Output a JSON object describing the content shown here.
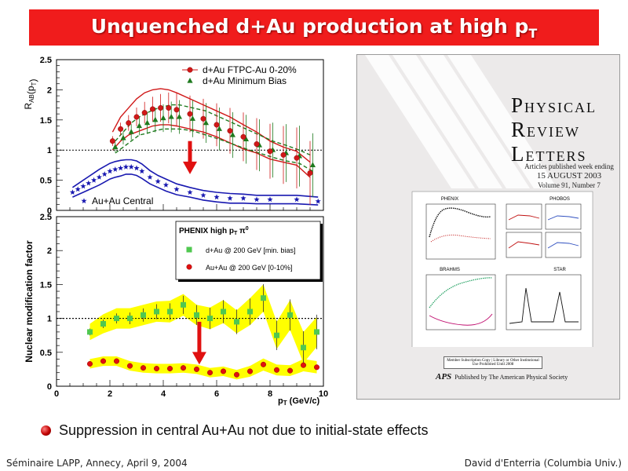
{
  "slide": {
    "title_main": "Unquenched d+Au production at high p",
    "title_sub": "T",
    "bullet": "Suppression in central Au+Au not due to initial-state effects",
    "footer_left": "Séminaire LAPP, Annecy, April 9, 2004",
    "footer_right": "David d'Enterria (Columbia Univ.)"
  },
  "journal": {
    "line1": "HYSICAL",
    "line1_cap": "P",
    "line2": "EVIEW",
    "line2_cap": "R",
    "line3": "ETTERS",
    "line3_cap": "L",
    "issue_lines": [
      "Articles published week ending",
      "15 AUGUST 2003",
      "Volume 91, Number 7"
    ],
    "panels": [
      "PHENIX",
      "PHOBOS",
      "BRAHMS",
      "STAR"
    ],
    "subscription_note": "Member Subscription Copy | Library or Other Institutional Use Prohibited Until 2008",
    "publisher_mark": "APS",
    "publisher": "Published by The American Physical Society"
  },
  "colors": {
    "title_bg": "#f01c1c",
    "star_red": "#d01818",
    "star_green": "#1e7a1e",
    "star_blue": "#1818b0",
    "phenix_band": "#ffff00",
    "phenix_green": "#50c850",
    "phenix_red": "#e01010",
    "arrow": "#e01010"
  },
  "chart_data": [
    {
      "type": "scatter",
      "ylabel_main": "R",
      "ylabel_sub": "AB",
      "ylabel_tail": "(p",
      "ylabel_tail_sub": "T",
      "ylabel_close": ")",
      "xlim": [
        0,
        10
      ],
      "ylim": [
        0,
        2.5
      ],
      "yticks": [
        "0",
        "0.5",
        "1",
        "1.5",
        "2",
        "2.5"
      ],
      "grid": false,
      "reference_line": 1,
      "legend_position": "top-right",
      "series": [
        {
          "name": "d+Au FTPC-Au 0-20%",
          "marker": "circle",
          "color": "#d01818",
          "x": [
            2.1,
            2.4,
            2.7,
            3.0,
            3.3,
            3.6,
            3.9,
            4.2,
            4.5,
            5.0,
            5.5,
            6.0,
            6.5,
            7.0,
            7.5,
            8.0,
            8.5,
            9.0,
            9.5
          ],
          "y": [
            1.15,
            1.35,
            1.45,
            1.55,
            1.62,
            1.68,
            1.7,
            1.7,
            1.67,
            1.6,
            1.52,
            1.42,
            1.32,
            1.22,
            1.1,
            0.98,
            0.92,
            0.87,
            0.62
          ],
          "band_upper": [
            1.3,
            1.55,
            1.7,
            1.85,
            1.95,
            2.0,
            2.02,
            2.0,
            1.95,
            1.85,
            1.75,
            1.65,
            1.55,
            1.42,
            1.3,
            1.15,
            1.05,
            0.98,
            0.8
          ],
          "band_lower": [
            1.0,
            1.15,
            1.25,
            1.3,
            1.35,
            1.4,
            1.42,
            1.42,
            1.4,
            1.35,
            1.3,
            1.22,
            1.12,
            1.02,
            0.95,
            0.85,
            0.8,
            0.75,
            0.55
          ]
        },
        {
          "name": "d+Au Minimum Bias",
          "marker": "triangle",
          "color": "#1e7a1e",
          "x": [
            2.2,
            2.5,
            2.8,
            3.1,
            3.4,
            3.7,
            4.0,
            4.3,
            4.6,
            5.1,
            5.6,
            6.1,
            6.6,
            7.1,
            7.6,
            8.1,
            8.6,
            9.1,
            9.6
          ],
          "y": [
            1.05,
            1.2,
            1.3,
            1.4,
            1.45,
            1.5,
            1.53,
            1.55,
            1.55,
            1.52,
            1.45,
            1.35,
            1.25,
            1.18,
            1.08,
            1.0,
            0.95,
            0.9,
            0.75
          ],
          "band_upper": [
            1.15,
            1.3,
            1.45,
            1.55,
            1.62,
            1.68,
            1.72,
            1.75,
            1.75,
            1.7,
            1.65,
            1.55,
            1.45,
            1.35,
            1.25,
            1.15,
            1.08,
            1.0,
            0.9
          ],
          "band_lower": [
            0.95,
            1.05,
            1.15,
            1.25,
            1.28,
            1.32,
            1.35,
            1.35,
            1.35,
            1.32,
            1.25,
            1.18,
            1.1,
            1.02,
            0.95,
            0.88,
            0.82,
            0.78,
            0.65
          ]
        },
        {
          "name": "Au+Au Central",
          "marker": "star",
          "color": "#1818b0",
          "x": [
            0.6,
            0.8,
            1.0,
            1.2,
            1.4,
            1.6,
            1.8,
            2.0,
            2.2,
            2.4,
            2.6,
            2.8,
            3.0,
            3.2,
            3.5,
            3.8,
            4.1,
            4.5,
            5.0,
            5.5,
            6.0,
            6.5,
            7.0,
            7.5,
            8.0,
            9.0,
            9.8
          ],
          "y": [
            0.3,
            0.35,
            0.4,
            0.45,
            0.5,
            0.55,
            0.6,
            0.65,
            0.68,
            0.7,
            0.72,
            0.72,
            0.7,
            0.65,
            0.55,
            0.48,
            0.42,
            0.35,
            0.3,
            0.25,
            0.22,
            0.2,
            0.2,
            0.18,
            0.18,
            0.18,
            0.15
          ],
          "band_upper": [
            0.38,
            0.44,
            0.5,
            0.56,
            0.62,
            0.68,
            0.73,
            0.78,
            0.81,
            0.83,
            0.84,
            0.84,
            0.82,
            0.77,
            0.66,
            0.58,
            0.52,
            0.44,
            0.38,
            0.33,
            0.3,
            0.28,
            0.27,
            0.25,
            0.25,
            0.25,
            0.22
          ],
          "band_lower": [
            0.22,
            0.26,
            0.3,
            0.34,
            0.38,
            0.42,
            0.47,
            0.52,
            0.55,
            0.57,
            0.6,
            0.6,
            0.58,
            0.53,
            0.44,
            0.38,
            0.32,
            0.26,
            0.22,
            0.17,
            0.14,
            0.12,
            0.12,
            0.11,
            0.11,
            0.11,
            0.09
          ]
        }
      ],
      "arrow_x": 5.0,
      "arrow_from_y": 1.15,
      "arrow_to_y": 0.6
    },
    {
      "type": "scatter",
      "ylabel": "Nuclear modification factor",
      "xlabel_main": "p",
      "xlabel_sub": "T",
      "xlabel_tail": " (GeV/c)",
      "xlim": [
        0,
        10
      ],
      "ylim": [
        0,
        2.5
      ],
      "xticks": [
        "0",
        "2",
        "4",
        "6",
        "8",
        "10"
      ],
      "yticks": [
        "0",
        "0.5",
        "1",
        "1.5",
        "2",
        "2.5"
      ],
      "grid": false,
      "reference_line": 1,
      "legend_title_main": "PHENIX high p",
      "legend_title_sub": "T",
      "legend_title_tail": " π",
      "legend_title_sup": "0",
      "legend_position": "top-right",
      "series": [
        {
          "name": "d+Au @ 200 GeV [min. bias]",
          "marker": "square",
          "color": "#50c850",
          "x": [
            1.25,
            1.75,
            2.25,
            2.75,
            3.25,
            3.75,
            4.25,
            4.75,
            5.25,
            5.75,
            6.25,
            6.75,
            7.25,
            7.75,
            8.25,
            8.75,
            9.25,
            9.75
          ],
          "y": [
            0.8,
            0.92,
            1.0,
            1.0,
            1.05,
            1.1,
            1.1,
            1.2,
            1.05,
            1.0,
            1.1,
            0.95,
            1.1,
            1.3,
            0.75,
            1.05,
            0.57,
            0.8
          ],
          "band_upper": [
            0.92,
            1.06,
            1.15,
            1.15,
            1.2,
            1.25,
            1.26,
            1.36,
            1.2,
            1.16,
            1.27,
            1.12,
            1.3,
            1.5,
            0.95,
            1.27,
            0.8,
            1.02
          ],
          "band_lower": [
            0.68,
            0.78,
            0.85,
            0.85,
            0.9,
            0.95,
            0.94,
            1.04,
            0.9,
            0.84,
            0.93,
            0.78,
            0.9,
            1.1,
            0.55,
            0.83,
            0.34,
            0.58
          ]
        },
        {
          "name": "Au+Au @ 200 GeV [0-10%]",
          "marker": "circle",
          "color": "#e01010",
          "x": [
            1.25,
            1.75,
            2.25,
            2.75,
            3.25,
            3.75,
            4.25,
            4.75,
            5.25,
            5.75,
            6.25,
            6.75,
            7.25,
            7.75,
            8.25,
            8.75,
            9.25,
            9.75
          ],
          "y": [
            0.33,
            0.37,
            0.37,
            0.3,
            0.27,
            0.26,
            0.26,
            0.27,
            0.25,
            0.2,
            0.22,
            0.17,
            0.22,
            0.32,
            0.24,
            0.23,
            0.31,
            0.28
          ],
          "band_upper": [
            0.4,
            0.44,
            0.44,
            0.37,
            0.34,
            0.33,
            0.33,
            0.34,
            0.32,
            0.27,
            0.29,
            0.24,
            0.3,
            0.41,
            0.32,
            0.31,
            0.4,
            0.37
          ],
          "band_lower": [
            0.26,
            0.3,
            0.3,
            0.23,
            0.2,
            0.19,
            0.19,
            0.2,
            0.18,
            0.13,
            0.15,
            0.1,
            0.14,
            0.23,
            0.16,
            0.15,
            0.22,
            0.19
          ]
        }
      ],
      "arrow_x": 5.35,
      "arrow_from_y": 0.95,
      "arrow_to_y": 0.32
    }
  ]
}
